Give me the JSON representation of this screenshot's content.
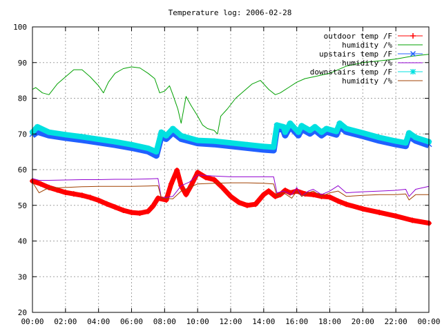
{
  "chart_data": {
    "type": "line",
    "title": "Temperature log: 2006-02-28",
    "xlabel": "",
    "ylabel": "",
    "xlim": [
      0,
      24
    ],
    "ylim": [
      20,
      100
    ],
    "x_ticks": [
      "00:00",
      "02:00",
      "04:00",
      "06:00",
      "08:00",
      "10:00",
      "12:00",
      "14:00",
      "16:00",
      "18:00",
      "20:00",
      "22:00",
      "00:00"
    ],
    "y_ticks": [
      20,
      30,
      40,
      50,
      60,
      70,
      80,
      90,
      100
    ],
    "grid": true,
    "legend_position": "top-right",
    "series": [
      {
        "name": "outdoor temp /F",
        "color": "#ff0000",
        "marker": "plus",
        "points": [
          [
            0,
            56.8
          ],
          [
            0.5,
            56.0
          ],
          [
            1,
            55.0
          ],
          [
            1.5,
            54.3
          ],
          [
            2,
            53.6
          ],
          [
            2.5,
            53.2
          ],
          [
            3,
            52.8
          ],
          [
            3.5,
            52.2
          ],
          [
            4,
            51.4
          ],
          [
            4.5,
            50.4
          ],
          [
            5,
            49.5
          ],
          [
            5.5,
            48.6
          ],
          [
            6,
            48.0
          ],
          [
            6.5,
            47.8
          ],
          [
            7,
            48.3
          ],
          [
            7.3,
            49.8
          ],
          [
            7.6,
            52.0
          ],
          [
            8.1,
            51.5
          ],
          [
            8.4,
            56.0
          ],
          [
            8.75,
            59.8
          ],
          [
            9.0,
            55.5
          ],
          [
            9.3,
            53.0
          ],
          [
            9.6,
            55.5
          ],
          [
            10.0,
            59.2
          ],
          [
            10.5,
            57.8
          ],
          [
            11,
            57.2
          ],
          [
            11.5,
            55.0
          ],
          [
            12,
            52.5
          ],
          [
            12.5,
            50.8
          ],
          [
            13,
            50.0
          ],
          [
            13.5,
            50.3
          ],
          [
            14,
            53.0
          ],
          [
            14.3,
            54.0
          ],
          [
            14.7,
            52.5
          ],
          [
            15,
            53.0
          ],
          [
            15.3,
            54.2
          ],
          [
            15.6,
            53.5
          ],
          [
            16,
            54.0
          ],
          [
            16.5,
            53.2
          ],
          [
            17,
            53.0
          ],
          [
            17.5,
            52.5
          ],
          [
            18,
            52.3
          ],
          [
            18.5,
            51.2
          ],
          [
            19,
            50.3
          ],
          [
            20,
            49.0
          ],
          [
            21,
            48.0
          ],
          [
            22,
            47.0
          ],
          [
            23,
            45.8
          ],
          [
            24,
            45.0
          ]
        ]
      },
      {
        "name": "humidity /%",
        "color": "#00a000",
        "marker": "none",
        "points": [
          [
            0,
            82.5
          ],
          [
            0.2,
            83.0
          ],
          [
            0.6,
            81.5
          ],
          [
            1,
            81.0
          ],
          [
            1.5,
            84.0
          ],
          [
            2,
            86.0
          ],
          [
            2.5,
            88.0
          ],
          [
            3,
            88.0
          ],
          [
            3.5,
            86.0
          ],
          [
            4,
            83.5
          ],
          [
            4.3,
            81.5
          ],
          [
            4.6,
            84.5
          ],
          [
            5,
            87.0
          ],
          [
            5.5,
            88.3
          ],
          [
            6,
            88.8
          ],
          [
            6.5,
            88.5
          ],
          [
            7,
            87.0
          ],
          [
            7.4,
            85.5
          ],
          [
            7.7,
            81.5
          ],
          [
            8,
            82.0
          ],
          [
            8.3,
            83.5
          ],
          [
            8.5,
            81.0
          ],
          [
            8.8,
            77.0
          ],
          [
            9.0,
            73.0
          ],
          [
            9.3,
            80.5
          ],
          [
            9.6,
            78.0
          ],
          [
            10,
            75.0
          ],
          [
            10.3,
            72.5
          ],
          [
            10.6,
            71.5
          ],
          [
            11,
            71.0
          ],
          [
            11.2,
            70.0
          ],
          [
            11.4,
            75.0
          ],
          [
            11.8,
            77.0
          ],
          [
            12.3,
            80.0
          ],
          [
            12.8,
            82.0
          ],
          [
            13.3,
            84.0
          ],
          [
            13.8,
            85.0
          ],
          [
            14.3,
            82.5
          ],
          [
            14.7,
            81.0
          ],
          [
            15,
            81.5
          ],
          [
            15.5,
            83.0
          ],
          [
            16,
            84.5
          ],
          [
            16.5,
            85.5
          ],
          [
            17,
            86.0
          ],
          [
            17.5,
            86.5
          ],
          [
            18,
            87.0
          ],
          [
            18.5,
            88.0
          ],
          [
            19,
            89.0
          ],
          [
            20,
            90.0
          ],
          [
            21,
            90.5
          ],
          [
            22,
            91.0
          ],
          [
            23,
            91.8
          ],
          [
            24,
            92.3
          ]
        ]
      },
      {
        "name": "upstairs temp /F",
        "color": "#2060ff",
        "marker": "cross",
        "points": [
          [
            0,
            70.0
          ],
          [
            0.3,
            71.0
          ],
          [
            1,
            70.0
          ],
          [
            2,
            69.3
          ],
          [
            3,
            68.7
          ],
          [
            4,
            68.0
          ],
          [
            5,
            67.3
          ],
          [
            6,
            66.5
          ],
          [
            7,
            65.5
          ],
          [
            7.5,
            64.3
          ],
          [
            7.8,
            69.8
          ],
          [
            8.1,
            69.0
          ],
          [
            8.5,
            70.8
          ],
          [
            9,
            69.0
          ],
          [
            10,
            67.8
          ],
          [
            11,
            67.5
          ],
          [
            12,
            67.0
          ],
          [
            13,
            66.5
          ],
          [
            14,
            66.0
          ],
          [
            14.6,
            65.8
          ],
          [
            14.8,
            72.0
          ],
          [
            15.2,
            71.5
          ],
          [
            15.3,
            70.0
          ],
          [
            15.6,
            72.5
          ],
          [
            16.1,
            70.0
          ],
          [
            16.3,
            71.8
          ],
          [
            16.8,
            70.5
          ],
          [
            17.1,
            71.5
          ],
          [
            17.5,
            70.0
          ],
          [
            17.8,
            71.0
          ],
          [
            18.4,
            70.2
          ],
          [
            18.6,
            72.5
          ],
          [
            19,
            71.0
          ],
          [
            20,
            69.8
          ],
          [
            21,
            68.5
          ],
          [
            22,
            67.5
          ],
          [
            22.6,
            67.0
          ],
          [
            22.8,
            69.8
          ],
          [
            23.2,
            68.5
          ],
          [
            24,
            67.2
          ]
        ]
      },
      {
        "name": "humidity /%",
        "color": "#9000d0",
        "marker": "none",
        "points": [
          [
            0,
            57.5
          ],
          [
            0.4,
            57.0
          ],
          [
            1,
            57.0
          ],
          [
            2,
            57.1
          ],
          [
            3,
            57.2
          ],
          [
            4,
            57.2
          ],
          [
            5,
            57.3
          ],
          [
            6,
            57.3
          ],
          [
            7,
            57.4
          ],
          [
            7.6,
            57.5
          ],
          [
            7.8,
            52.0
          ],
          [
            8.5,
            52.5
          ],
          [
            9,
            55.5
          ],
          [
            9.5,
            56.5
          ],
          [
            10,
            58.5
          ],
          [
            11,
            58.2
          ],
          [
            12,
            58.0
          ],
          [
            13,
            58.0
          ],
          [
            14,
            58.0
          ],
          [
            14.6,
            58.0
          ],
          [
            14.8,
            53.5
          ],
          [
            15.2,
            54.0
          ],
          [
            15.7,
            53.0
          ],
          [
            16,
            55.0
          ],
          [
            16.3,
            52.5
          ],
          [
            16.7,
            54.0
          ],
          [
            17,
            54.5
          ],
          [
            17.5,
            53.0
          ],
          [
            18,
            54.0
          ],
          [
            18.5,
            55.5
          ],
          [
            19,
            53.5
          ],
          [
            20,
            53.8
          ],
          [
            21,
            54.0
          ],
          [
            22,
            54.2
          ],
          [
            22.6,
            54.5
          ],
          [
            22.8,
            52.5
          ],
          [
            23.2,
            54.5
          ],
          [
            24,
            55.3
          ]
        ]
      },
      {
        "name": "downstairs temp /F",
        "color": "#00e0e0",
        "marker": "star",
        "points": [
          [
            0,
            70.5
          ],
          [
            0.3,
            72.0
          ],
          [
            1,
            70.5
          ],
          [
            2,
            69.8
          ],
          [
            3,
            69.2
          ],
          [
            4,
            68.5
          ],
          [
            5,
            67.8
          ],
          [
            6,
            67.0
          ],
          [
            7,
            66.0
          ],
          [
            7.5,
            65.0
          ],
          [
            7.8,
            70.5
          ],
          [
            8.1,
            69.5
          ],
          [
            8.5,
            71.5
          ],
          [
            9,
            69.5
          ],
          [
            10,
            68.2
          ],
          [
            11,
            68.0
          ],
          [
            12,
            67.5
          ],
          [
            13,
            67.0
          ],
          [
            14,
            66.5
          ],
          [
            14.6,
            66.3
          ],
          [
            14.8,
            72.5
          ],
          [
            15.2,
            72.0
          ],
          [
            15.3,
            70.5
          ],
          [
            15.6,
            73.0
          ],
          [
            16.1,
            70.5
          ],
          [
            16.3,
            72.3
          ],
          [
            16.8,
            71.0
          ],
          [
            17.1,
            72.0
          ],
          [
            17.5,
            70.5
          ],
          [
            17.8,
            71.5
          ],
          [
            18.4,
            70.7
          ],
          [
            18.6,
            73.0
          ],
          [
            19,
            71.5
          ],
          [
            20,
            70.3
          ],
          [
            21,
            69.0
          ],
          [
            22,
            68.0
          ],
          [
            22.6,
            67.5
          ],
          [
            22.8,
            70.3
          ],
          [
            23.2,
            69.0
          ],
          [
            24,
            67.8
          ]
        ]
      },
      {
        "name": "humidity /%",
        "color": "#a04000",
        "marker": "none",
        "points": [
          [
            0,
            56.5
          ],
          [
            0.4,
            53.5
          ],
          [
            0.8,
            54.5
          ],
          [
            1,
            54.8
          ],
          [
            2,
            55.0
          ],
          [
            3,
            55.2
          ],
          [
            4,
            55.3
          ],
          [
            5,
            55.3
          ],
          [
            6,
            55.3
          ],
          [
            7,
            55.4
          ],
          [
            7.6,
            55.5
          ],
          [
            7.8,
            52.0
          ],
          [
            8.5,
            51.8
          ],
          [
            9,
            54.0
          ],
          [
            9.5,
            55.0
          ],
          [
            10,
            56.0
          ],
          [
            11,
            56.2
          ],
          [
            12,
            56.3
          ],
          [
            13,
            56.3
          ],
          [
            14,
            56.2
          ],
          [
            14.6,
            56.0
          ],
          [
            14.8,
            52.5
          ],
          [
            15.2,
            53.5
          ],
          [
            15.7,
            52.0
          ],
          [
            16,
            54.0
          ],
          [
            16.3,
            52.5
          ],
          [
            16.7,
            53.5
          ],
          [
            17,
            54.0
          ],
          [
            17.5,
            52.5
          ],
          [
            18,
            53.5
          ],
          [
            18.5,
            54.0
          ],
          [
            19,
            52.5
          ],
          [
            20,
            52.8
          ],
          [
            21,
            53.0
          ],
          [
            22,
            53.0
          ],
          [
            22.6,
            53.2
          ],
          [
            22.8,
            51.5
          ],
          [
            23.2,
            53.0
          ],
          [
            24,
            53.0
          ]
        ]
      }
    ]
  }
}
